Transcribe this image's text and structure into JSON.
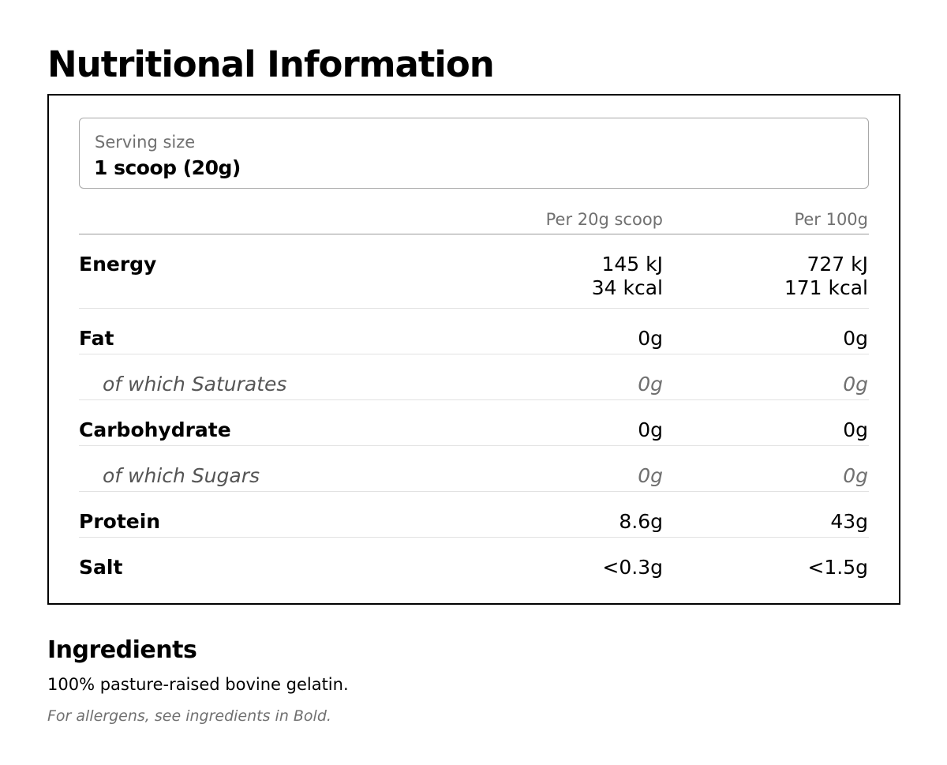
{
  "page": {
    "title": "Nutritional Information"
  },
  "serving": {
    "label": "Serving size",
    "value": "1 scoop (20g)"
  },
  "table": {
    "columns": [
      "Per 20g scoop",
      "Per 100g"
    ],
    "rows": [
      {
        "label": "Energy",
        "per_serving": "145 kJ",
        "per_serving_2": "34 kcal",
        "per_100g": "727 kJ",
        "per_100g_2": "171 kcal"
      },
      {
        "label": "Fat",
        "per_serving": "0g",
        "per_100g": "0g"
      },
      {
        "label": "of which Saturates",
        "per_serving": "0g",
        "per_100g": "0g"
      },
      {
        "label": "Carbohydrate",
        "per_serving": "0g",
        "per_100g": "0g"
      },
      {
        "label": "of which Sugars",
        "per_serving": "0g",
        "per_100g": "0g"
      },
      {
        "label": "Protein",
        "per_serving": "8.6g",
        "per_100g": "43g"
      },
      {
        "label": "Salt",
        "per_serving": "<0.3g",
        "per_100g": "<1.5g"
      }
    ]
  },
  "ingredients": {
    "title": "Ingredients",
    "text": "100% pasture-raised bovine gelatin.",
    "allergen_note": "For allergens, see ingredients in Bold."
  }
}
